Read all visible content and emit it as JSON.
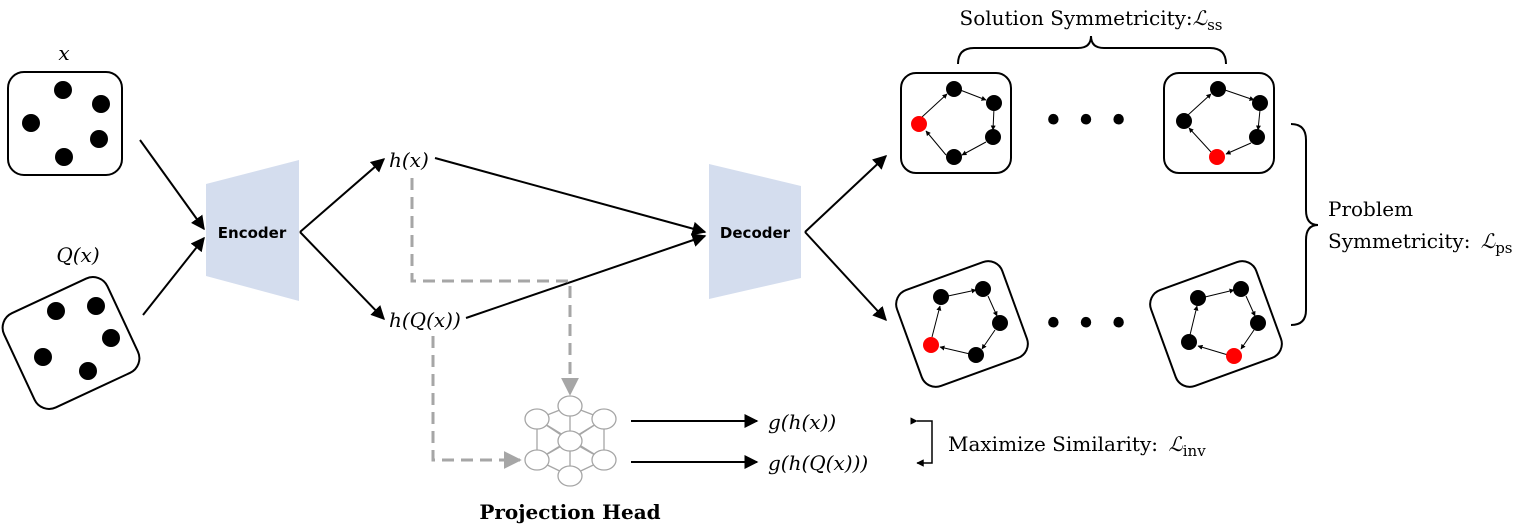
{
  "inputs": {
    "x_label": "x",
    "qx_label": "Q(x)"
  },
  "blocks": {
    "encoder": "Encoder",
    "decoder": "Decoder",
    "projection_head": "Projection Head"
  },
  "latents": {
    "hx": "h(x)",
    "hqx": "h(Q(x))",
    "ghx": "g(h(x))",
    "ghqx": "g(h(Q(x)))"
  },
  "losses": {
    "solution_text": "Solution Symmetricity:",
    "solution_symbol": "ℒ",
    "solution_sub": "ss",
    "problem_line1": "Problem",
    "problem_text": "Symmetricity:",
    "problem_symbol": "ℒ",
    "problem_sub": "ps",
    "invariance_text": "Maximize Similarity:",
    "invariance_symbol": "ℒ",
    "invariance_sub": "inv"
  },
  "ellipsis": "• • •",
  "colors": {
    "block_fill": "#d4ddee",
    "highlight_node": "#ff0000",
    "dashed": "#a6a6a6",
    "node": "#000000"
  }
}
